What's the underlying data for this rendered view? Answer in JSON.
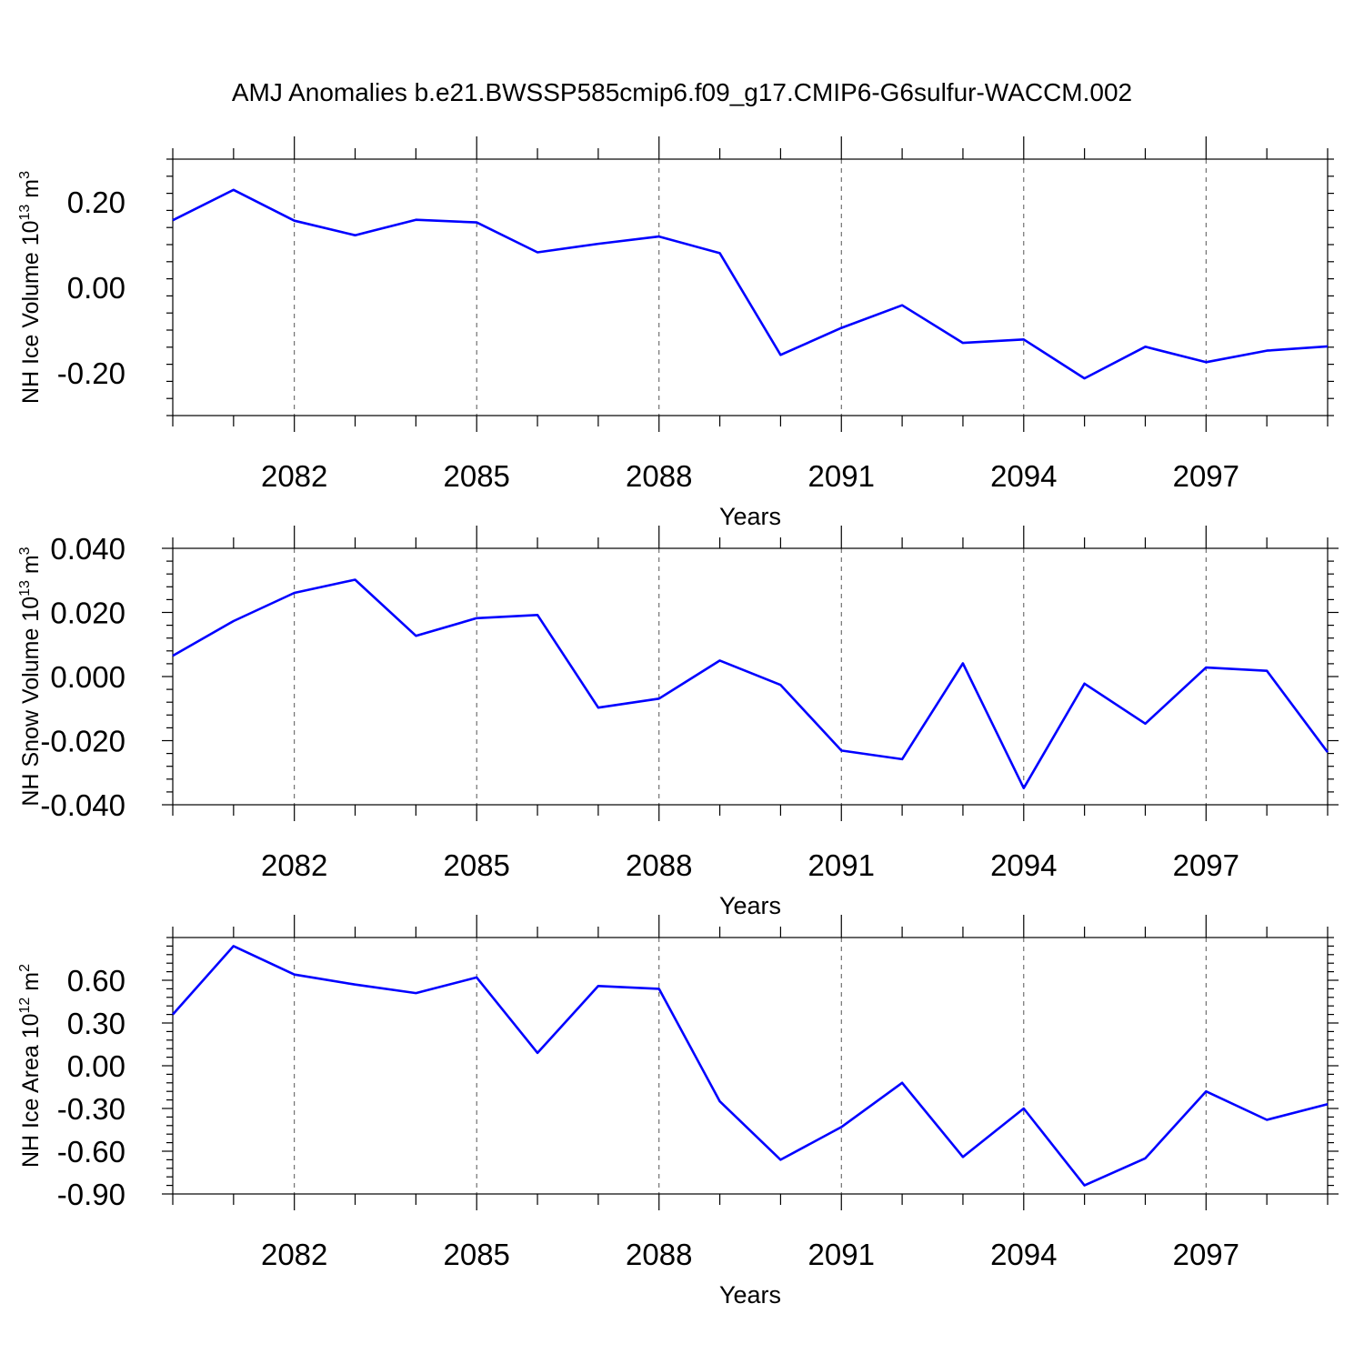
{
  "title": "AMJ Anomalies b.e21.BWSSP585cmip6.f09_g17.CMIP6-G6sulfur-WACCM.002",
  "line_color": "#0000ff",
  "chart_data": [
    {
      "type": "line",
      "ylabel_main": "NH Ice Volume 10",
      "ylabel_exp": "13",
      "ylabel_unit": "m",
      "ylabel_unit_exp": "3",
      "xlabel": "Years",
      "xlim": [
        2080,
        2099
      ],
      "ylim": [
        -0.3,
        0.3
      ],
      "grid": "vertical dashed at labeled years",
      "x_ticks": [
        2082,
        2085,
        2088,
        2091,
        2094,
        2097
      ],
      "x_tick_labels": [
        "2082",
        "2085",
        "2088",
        "2091",
        "2094",
        "2097"
      ],
      "y_ticks": [
        -0.2,
        0.0,
        0.2
      ],
      "y_tick_labels": [
        "-0.20",
        "0.00",
        "0.20"
      ],
      "x": [
        2080,
        2081,
        2082,
        2083,
        2084,
        2085,
        2086,
        2087,
        2088,
        2089,
        2090,
        2091,
        2092,
        2093,
        2094,
        2095,
        2096,
        2097,
        2098,
        2099
      ],
      "values": [
        0.157,
        0.228,
        0.156,
        0.122,
        0.158,
        0.152,
        0.082,
        0.102,
        0.119,
        0.08,
        -0.158,
        -0.095,
        -0.042,
        -0.13,
        -0.122,
        -0.213,
        -0.139,
        -0.175,
        -0.148,
        -0.138
      ]
    },
    {
      "type": "line",
      "ylabel_main": "NH Snow Volume 10",
      "ylabel_exp": "13",
      "ylabel_unit": "m",
      "ylabel_unit_exp": "3",
      "xlabel": "Years",
      "xlim": [
        2080,
        2099
      ],
      "ylim": [
        -0.04,
        0.04
      ],
      "grid": "vertical dashed at labeled years",
      "x_ticks": [
        2082,
        2085,
        2088,
        2091,
        2094,
        2097
      ],
      "x_tick_labels": [
        "2082",
        "2085",
        "2088",
        "2091",
        "2094",
        "2097"
      ],
      "y_ticks": [
        -0.04,
        -0.02,
        0.0,
        0.02,
        0.04
      ],
      "y_tick_labels": [
        "-0.040",
        "-0.020",
        "0.000",
        "0.020",
        "0.040"
      ],
      "x": [
        2080,
        2081,
        2082,
        2083,
        2084,
        2085,
        2086,
        2087,
        2088,
        2089,
        2090,
        2091,
        2092,
        2093,
        2094,
        2095,
        2096,
        2097,
        2098,
        2099
      ],
      "values": [
        0.0065,
        0.0173,
        0.0261,
        0.0302,
        0.0127,
        0.0182,
        0.0192,
        -0.0097,
        -0.0069,
        0.005,
        -0.0026,
        -0.0231,
        -0.0258,
        0.0041,
        -0.0348,
        -0.0022,
        -0.0147,
        0.0028,
        0.0018,
        -0.0236
      ]
    },
    {
      "type": "line",
      "ylabel_main": "NH Ice Area 10",
      "ylabel_exp": "12",
      "ylabel_unit": "m",
      "ylabel_unit_exp": "2",
      "xlabel": "Years",
      "xlim": [
        2080,
        2099
      ],
      "ylim": [
        -0.9,
        0.9
      ],
      "grid": "vertical dashed at labeled years",
      "x_ticks": [
        2082,
        2085,
        2088,
        2091,
        2094,
        2097
      ],
      "x_tick_labels": [
        "2082",
        "2085",
        "2088",
        "2091",
        "2094",
        "2097"
      ],
      "y_ticks": [
        -0.9,
        -0.6,
        -0.3,
        0.0,
        0.3,
        0.6
      ],
      "y_tick_labels": [
        "-0.90",
        "-0.60",
        "-0.30",
        "0.00",
        "0.30",
        "0.60"
      ],
      "x": [
        2080,
        2081,
        2082,
        2083,
        2084,
        2085,
        2086,
        2087,
        2088,
        2089,
        2090,
        2091,
        2092,
        2093,
        2094,
        2095,
        2096,
        2097,
        2098,
        2099
      ],
      "values": [
        0.36,
        0.84,
        0.64,
        0.57,
        0.51,
        0.62,
        0.09,
        0.56,
        0.54,
        -0.25,
        -0.66,
        -0.43,
        -0.12,
        -0.64,
        -0.3,
        -0.84,
        -0.65,
        -0.18,
        -0.38,
        -0.27
      ]
    }
  ]
}
